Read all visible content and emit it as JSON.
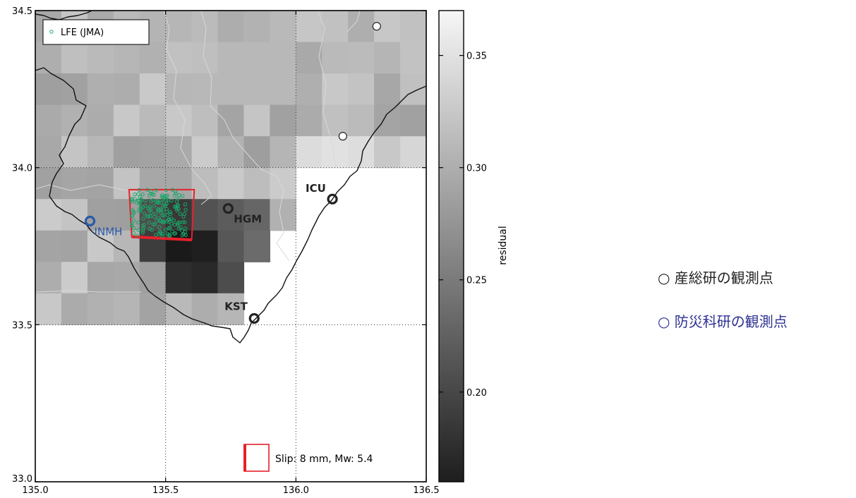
{
  "map": {
    "axes": {
      "lon_range": [
        135.0,
        136.5
      ],
      "lat_range": [
        33.0,
        34.5
      ],
      "x_ticks": [
        "135.0",
        "135.5",
        "136.0",
        "136.5"
      ],
      "y_ticks": [
        "33.0",
        "33.5",
        "34.0",
        "34.5"
      ],
      "dotted_grid": true
    },
    "colorbar": {
      "label": "residual",
      "range": [
        0.16,
        0.37
      ],
      "ticks": [
        "0.20",
        "0.25",
        "0.30",
        "0.35"
      ],
      "colormap": "gray"
    },
    "legend": {
      "entry": "LFE (JMA)",
      "marker_color": "#1aa86a",
      "placement": "top-left"
    },
    "fault_legend": {
      "text": "Slip: 8 mm, Mw: 5.4",
      "color": "#e8202a",
      "placement": "bottom-right"
    },
    "stations": [
      {
        "name": "ICU",
        "lon": 136.14,
        "lat": 33.9,
        "network": "AIST"
      },
      {
        "name": "HGM",
        "lon": 135.74,
        "lat": 33.87,
        "network": "AIST"
      },
      {
        "name": "KST",
        "lon": 135.84,
        "lat": 33.52,
        "network": "AIST"
      },
      {
        "name": "INMH",
        "lon": 135.21,
        "lat": 33.83,
        "network": "NIED"
      },
      {
        "name": "",
        "lon": 136.31,
        "lat": 34.45,
        "network": "AIST"
      },
      {
        "name": "",
        "lon": 136.18,
        "lat": 34.1,
        "network": "AIST"
      }
    ],
    "fault_plane": {
      "corners_lonlat": [
        [
          135.36,
          33.93
        ],
        [
          135.61,
          33.93
        ],
        [
          135.6,
          33.77
        ],
        [
          135.37,
          33.78
        ]
      ]
    },
    "lfe_cluster": {
      "lon_range": [
        135.37,
        135.58
      ],
      "lat_range": [
        33.78,
        33.93
      ]
    }
  },
  "annotations": {
    "aist": "○ 産総研の観測点",
    "nied": "○ 防災科研の観測点"
  },
  "colors": {
    "station_aist": "#222222",
    "station_nied": "#2a5aa8",
    "fault": "#e8202a",
    "lfe": "#1aa86a"
  }
}
